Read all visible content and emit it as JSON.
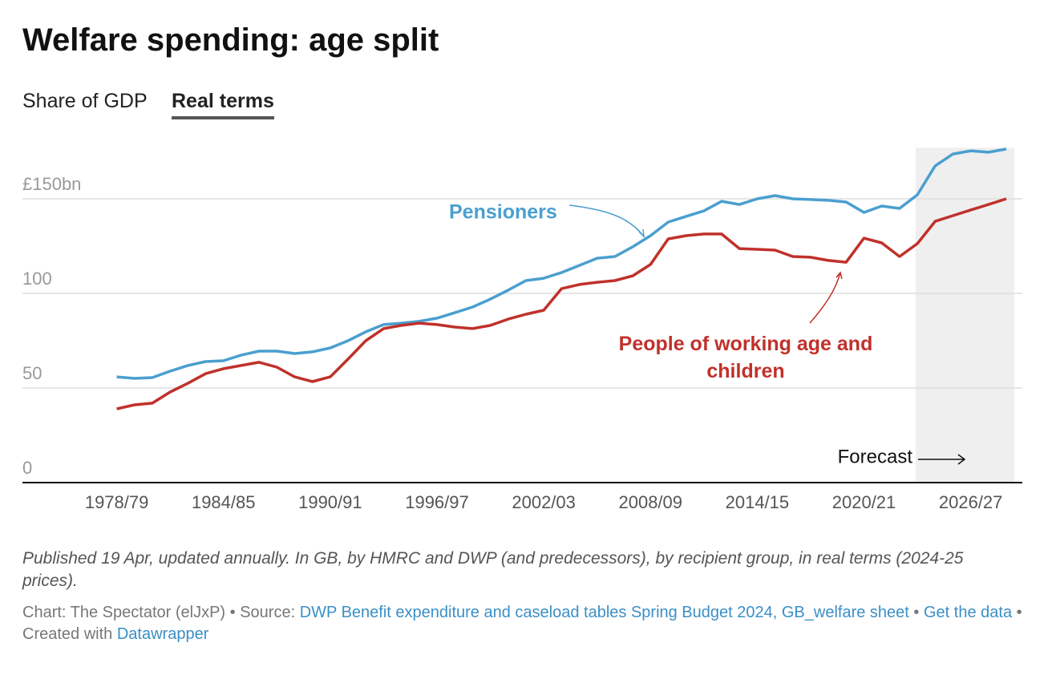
{
  "chart_data": {
    "type": "line",
    "title": "Welfare spending: age split",
    "tabs": [
      "Share of GDP",
      "Real terms"
    ],
    "active_tab": 1,
    "x": [
      1978,
      1979,
      1980,
      1981,
      1982,
      1983,
      1984,
      1985,
      1986,
      1987,
      1988,
      1989,
      1990,
      1991,
      1992,
      1993,
      1994,
      1995,
      1996,
      1997,
      1998,
      1999,
      2000,
      2001,
      2002,
      2003,
      2004,
      2005,
      2006,
      2007,
      2008,
      2009,
      2010,
      2011,
      2012,
      2013,
      2014,
      2015,
      2016,
      2017,
      2018,
      2019,
      2020,
      2021,
      2022,
      2023,
      2024,
      2025,
      2026,
      2027,
      2028
    ],
    "series": [
      {
        "name": "Pensioners",
        "color": "#4a9fcf",
        "values": [
          55.9,
          55.1,
          55.5,
          58.9,
          61.9,
          64,
          64.4,
          67.4,
          69.5,
          69.5,
          68.2,
          69.1,
          71.2,
          75,
          79.7,
          83.5,
          84.3,
          85.2,
          86.9,
          89.8,
          92.8,
          97,
          101.7,
          106.8,
          108,
          111,
          114.8,
          118.6,
          119.5,
          124.6,
          130.5,
          137.7,
          140.7,
          143.6,
          148.7,
          147,
          150,
          151.7,
          150,
          149.6,
          149.2,
          148.3,
          142.8,
          146.2,
          144.9,
          152.1,
          167.4,
          173.7,
          175.4,
          174.6,
          176.3
        ]
      },
      {
        "name": "People of working age and children",
        "color": "#c0312b",
        "values": [
          39,
          41.1,
          42,
          47.9,
          52.5,
          57.6,
          60.2,
          61.9,
          63.6,
          61,
          55.9,
          53.4,
          55.9,
          65.3,
          75,
          81.4,
          83.1,
          84.3,
          83.5,
          82.2,
          81.4,
          83.1,
          86.4,
          89,
          91.1,
          102.5,
          104.7,
          105.9,
          106.8,
          109.3,
          115.3,
          128.8,
          130.5,
          131.4,
          131.4,
          123.7,
          123.3,
          122.9,
          119.5,
          119.1,
          117.4,
          116.5,
          129.2,
          126.7,
          119.5,
          126.3,
          138.1,
          141.1,
          144.1,
          147,
          150
        ]
      }
    ],
    "xlim": [
      1972.7,
      2028.9
    ],
    "xticks": [
      {
        "value": 1978,
        "label": "1978/79"
      },
      {
        "value": 1984,
        "label": "1984/85"
      },
      {
        "value": 1990,
        "label": "1990/91"
      },
      {
        "value": 1996,
        "label": "1996/97"
      },
      {
        "value": 2002,
        "label": "2002/03"
      },
      {
        "value": 2008,
        "label": "2008/09"
      },
      {
        "value": 2014,
        "label": "2014/15"
      },
      {
        "value": 2020,
        "label": "2020/21"
      },
      {
        "value": 2026,
        "label": "2026/27"
      }
    ],
    "ylim": [
      0,
      177
    ],
    "yticks": [
      0,
      50,
      100,
      {
        "value": 150,
        "label": "£150bn"
      }
    ],
    "grid": true,
    "forecast": {
      "label": "Forecast",
      "span": [
        2022.9,
        2028.45
      ],
      "color": "#efefef"
    },
    "notes": "Published 19 Apr, updated annually. In GB, by HMRC and DWP (and predecessors), by recipient group, in real terms (2024-25 prices).",
    "credits": {
      "byline": "Chart: The Spectator (elJxP)",
      "separator": "•",
      "source_label": "Source:",
      "source": "DWP Benefit expenditure and caseload tables Spring Budget 2024, GB_welfare sheet",
      "get_data": "Get the data",
      "created_label": "Created with",
      "created_with": "Datawrapper"
    }
  }
}
